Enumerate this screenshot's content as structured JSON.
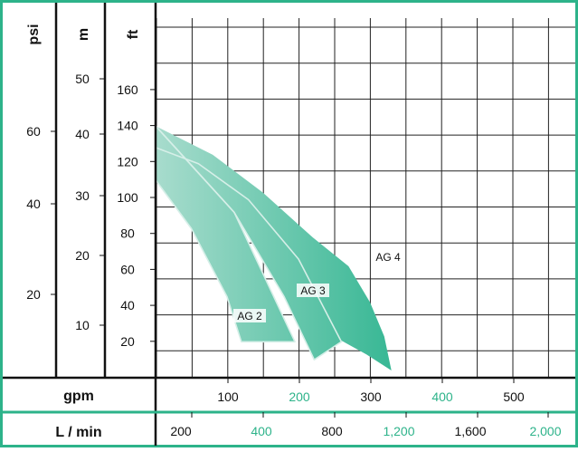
{
  "chart_data": {
    "type": "area",
    "left_axes": [
      {
        "label": "psi",
        "ticks": [
          "20",
          "40",
          "60"
        ]
      },
      {
        "label": "m",
        "ticks": [
          "10",
          "20",
          "30",
          "40",
          "50"
        ]
      },
      {
        "label": "ft",
        "ticks": [
          "20",
          "40",
          "60",
          "80",
          "100",
          "120",
          "140",
          "160"
        ]
      }
    ],
    "bottom_axes": [
      {
        "label": "gpm",
        "ticks": [
          "100",
          "200",
          "300",
          "400",
          "500"
        ],
        "highlight": [
          "200",
          "400"
        ]
      },
      {
        "label": "L / min",
        "ticks": [
          "200",
          "400",
          "800",
          "1,200",
          "1,600",
          "2,000"
        ],
        "highlight": [
          "400",
          "1,200",
          "2,000"
        ]
      }
    ],
    "x_unit": "gpm",
    "y_unit": "ft",
    "xlim": [
      0,
      575
    ],
    "ylim": [
      0,
      180
    ],
    "series": [
      {
        "name": "AG 2",
        "points": [
          [
            0,
            110
          ],
          [
            50,
            83
          ],
          [
            100,
            45
          ],
          [
            120,
            20
          ],
          [
            195,
            20
          ],
          [
            110,
            92
          ],
          [
            0,
            140
          ]
        ]
      },
      {
        "name": "AG 3",
        "points": [
          [
            0,
            128
          ],
          [
            60,
            119
          ],
          [
            130,
            99
          ],
          [
            200,
            66
          ],
          [
            260,
            20
          ],
          [
            222,
            10
          ],
          [
            180,
            45
          ],
          [
            110,
            92
          ],
          [
            0,
            140
          ]
        ]
      },
      {
        "name": "AG 4",
        "points": [
          [
            0,
            140
          ],
          [
            80,
            124
          ],
          [
            150,
            103
          ],
          [
            220,
            78
          ],
          [
            270,
            62
          ],
          [
            300,
            42
          ],
          [
            320,
            23
          ],
          [
            330,
            4
          ],
          [
            295,
            13
          ],
          [
            240,
            25
          ],
          [
            210,
            22
          ],
          [
            180,
            45
          ],
          [
            110,
            92
          ],
          [
            0,
            140
          ]
        ]
      }
    ],
    "colors": {
      "frame": "#2db38a",
      "fill_light": "#a8dccd",
      "fill_dark": "#1bae86",
      "highlight_text": "#2db38a"
    }
  }
}
